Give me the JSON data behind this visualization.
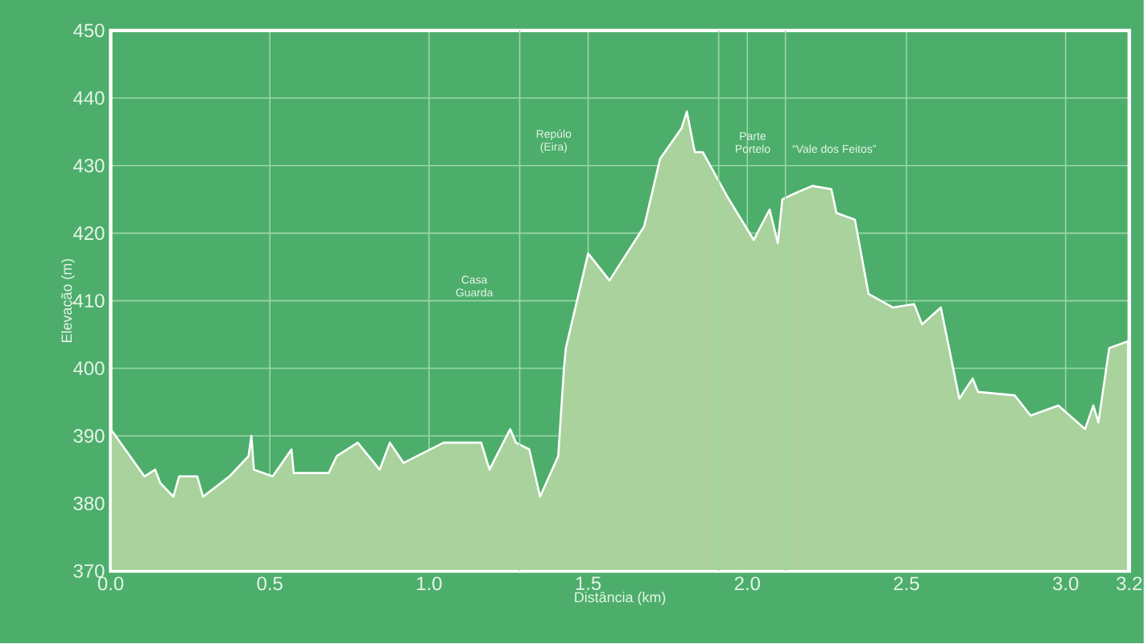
{
  "chart_data": {
    "type": "area",
    "xlabel": "Distância (km)",
    "ylabel": "Elevação (m)",
    "x": [
      0,
      0.106,
      0.14,
      0.156,
      0.197,
      0.215,
      0.272,
      0.29,
      0.373,
      0.433,
      0.442,
      0.45,
      0.509,
      0.568,
      0.575,
      0.685,
      0.71,
      0.776,
      0.845,
      0.877,
      0.92,
      1.046,
      1.164,
      1.19,
      1.255,
      1.273,
      1.315,
      1.349,
      1.406,
      1.424,
      1.43,
      1.5,
      1.567,
      1.676,
      1.726,
      1.793,
      1.81,
      1.835,
      1.86,
      1.936,
      2.02,
      2.07,
      2.096,
      2.11,
      2.155,
      2.205,
      2.264,
      2.28,
      2.338,
      2.381,
      2.457,
      2.524,
      2.549,
      2.608,
      2.666,
      2.708,
      2.725,
      2.84,
      2.89,
      2.977,
      3.061,
      3.087,
      3.103,
      3.137,
      3.196
    ],
    "values": [
      391,
      384,
      385,
      383,
      381,
      384,
      384,
      381,
      384,
      387,
      390,
      385,
      384,
      388,
      384.5,
      384.5,
      387,
      389,
      385,
      389,
      386,
      389,
      389,
      385,
      391,
      389,
      388,
      381,
      387,
      400,
      403,
      417,
      413,
      421,
      431,
      435.5,
      438,
      432,
      432,
      425.5,
      419,
      423.5,
      418.5,
      425,
      426,
      427,
      426.5,
      423,
      422,
      411,
      409,
      409.5,
      406.5,
      409,
      395.5,
      398.5,
      396.5,
      396,
      393,
      394.5,
      391,
      394.5,
      392,
      403,
      404
    ],
    "color": "#a9d29c",
    "xlim": [
      0,
      3.2
    ],
    "ylim": [
      370,
      450
    ],
    "xticks": [
      {
        "value": 0,
        "label": "0.0"
      },
      {
        "value": 0.5,
        "label": "0.5"
      },
      {
        "value": 1,
        "label": "1.0"
      },
      {
        "value": 1.5,
        "label": "1.5"
      },
      {
        "value": 2,
        "label": "2.0"
      },
      {
        "value": 2.5,
        "label": "2.5"
      },
      {
        "value": 3,
        "label": "3.0"
      },
      {
        "value": 3.2,
        "label": "3.2"
      }
    ],
    "yticks": [
      370,
      380,
      390,
      400,
      410,
      420,
      430,
      440,
      450
    ],
    "grid": true,
    "ref_lines": [
      {
        "axis": "x",
        "value": 1.285,
        "label": "Repúlo (Eira)"
      },
      {
        "axis": "x",
        "value": 1.91,
        "label": "Parte Portelo"
      },
      {
        "axis": "x",
        "value": 2.12,
        "label": "“Vale dos Feitos”"
      }
    ],
    "annotations": [
      "Casa Guarda"
    ]
  }
}
